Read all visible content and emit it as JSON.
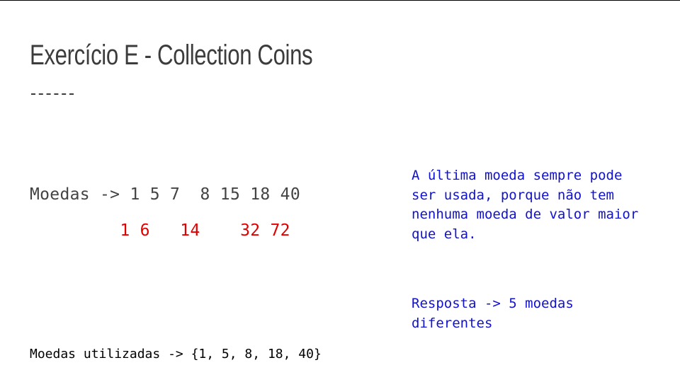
{
  "slide": {
    "title": "Exercício E - Collection Coins",
    "coins_line": "Moedas -> 1 5 7  8 15 18 40",
    "sums_line": "         1 6   14    32 72",
    "note": {
      "paragraph1": "A última moeda sempre pode\nser usada, porque não tem\nnenhuma moeda de valor maior\nque ela.",
      "paragraph2": "Resposta -> 5 moedas\ndiferentes"
    },
    "used_line": "Moedas utilizadas -> {1, 5, 8, 18, 40}"
  },
  "colors": {
    "title": "#3c3c3c",
    "body_text": "#444444",
    "highlight": "#e00000",
    "note_text": "#1111d0"
  }
}
